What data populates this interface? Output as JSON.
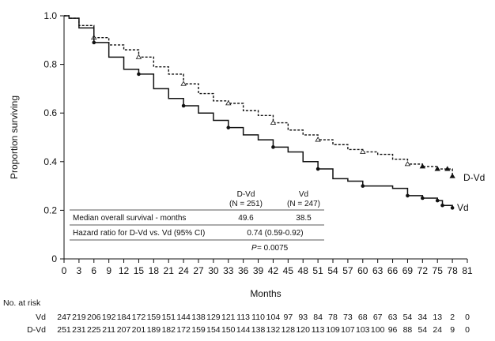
{
  "chart_data": {
    "type": "line",
    "title": "",
    "xlabel": "Months",
    "ylabel": "Proportion surviving",
    "xlim": [
      0,
      81
    ],
    "ylim": [
      0,
      1.0
    ],
    "xticks": [
      0,
      3,
      6,
      9,
      12,
      15,
      18,
      21,
      24,
      27,
      30,
      33,
      36,
      39,
      42,
      45,
      48,
      51,
      54,
      57,
      60,
      63,
      66,
      69,
      72,
      75,
      78,
      81
    ],
    "yticks": [
      "0",
      "0.2",
      "0.4",
      "0.6",
      "0.8",
      "1.0"
    ],
    "ytick_values": [
      0,
      0.2,
      0.4,
      0.6,
      0.8,
      1.0
    ],
    "grid": false,
    "series": [
      {
        "name": "D-Vd",
        "style": "dashed",
        "marker": "triangle",
        "x": [
          0,
          1,
          3,
          6,
          9,
          12,
          15,
          18,
          21,
          24,
          27,
          30,
          33,
          36,
          39,
          42,
          45,
          48,
          51,
          54,
          57,
          60,
          63,
          66,
          69,
          72,
          75,
          77,
          78
        ],
        "y": [
          1.0,
          0.99,
          0.96,
          0.91,
          0.88,
          0.86,
          0.83,
          0.79,
          0.76,
          0.72,
          0.68,
          0.65,
          0.64,
          0.61,
          0.59,
          0.56,
          0.53,
          0.51,
          0.49,
          0.47,
          0.45,
          0.44,
          0.43,
          0.41,
          0.39,
          0.38,
          0.37,
          0.37,
          0.34
        ]
      },
      {
        "name": "Vd",
        "style": "solid",
        "marker": "circle",
        "x": [
          0,
          1,
          3,
          6,
          9,
          12,
          15,
          18,
          21,
          24,
          27,
          30,
          33,
          36,
          39,
          42,
          45,
          48,
          51,
          54,
          57,
          60,
          63,
          66,
          69,
          72,
          75,
          76,
          78
        ],
        "y": [
          1.0,
          0.99,
          0.95,
          0.89,
          0.83,
          0.78,
          0.76,
          0.7,
          0.66,
          0.63,
          0.6,
          0.57,
          0.54,
          0.51,
          0.49,
          0.46,
          0.44,
          0.4,
          0.37,
          0.33,
          0.32,
          0.3,
          0.3,
          0.29,
          0.26,
          0.25,
          0.24,
          0.22,
          0.21
        ]
      }
    ],
    "legend": "end-of-line labels",
    "stats_table": {
      "headers": [
        [
          "D-Vd",
          "(N = 251)"
        ],
        [
          "Vd",
          "(N = 247)"
        ]
      ],
      "median_label": "Median overall survival - months",
      "median_dvd": "49.6",
      "median_vd": "38.5",
      "hr_label": "Hazard ratio for D-Vd vs. Vd (95% CI)",
      "hr_value": "0.74 (0.59-0.92)",
      "p_label": "P",
      "p_value": " = 0.0075"
    },
    "at_risk": {
      "title": "No. at risk",
      "rows": [
        {
          "label": "Vd",
          "values": [
            "247",
            "219",
            "206",
            "192",
            "184",
            "172",
            "159",
            "151",
            "144",
            "138",
            "129",
            "121",
            "113",
            "110",
            "104",
            "97",
            "93",
            "84",
            "78",
            "73",
            "68",
            "67",
            "63",
            "54",
            "34",
            "13",
            "2",
            "0"
          ]
        },
        {
          "label": "D-Vd",
          "values": [
            "251",
            "231",
            "225",
            "211",
            "207",
            "201",
            "189",
            "182",
            "172",
            "159",
            "154",
            "150",
            "144",
            "138",
            "132",
            "128",
            "120",
            "113",
            "109",
            "107",
            "103",
            "100",
            "96",
            "88",
            "54",
            "24",
            "9",
            "0"
          ]
        }
      ]
    }
  }
}
